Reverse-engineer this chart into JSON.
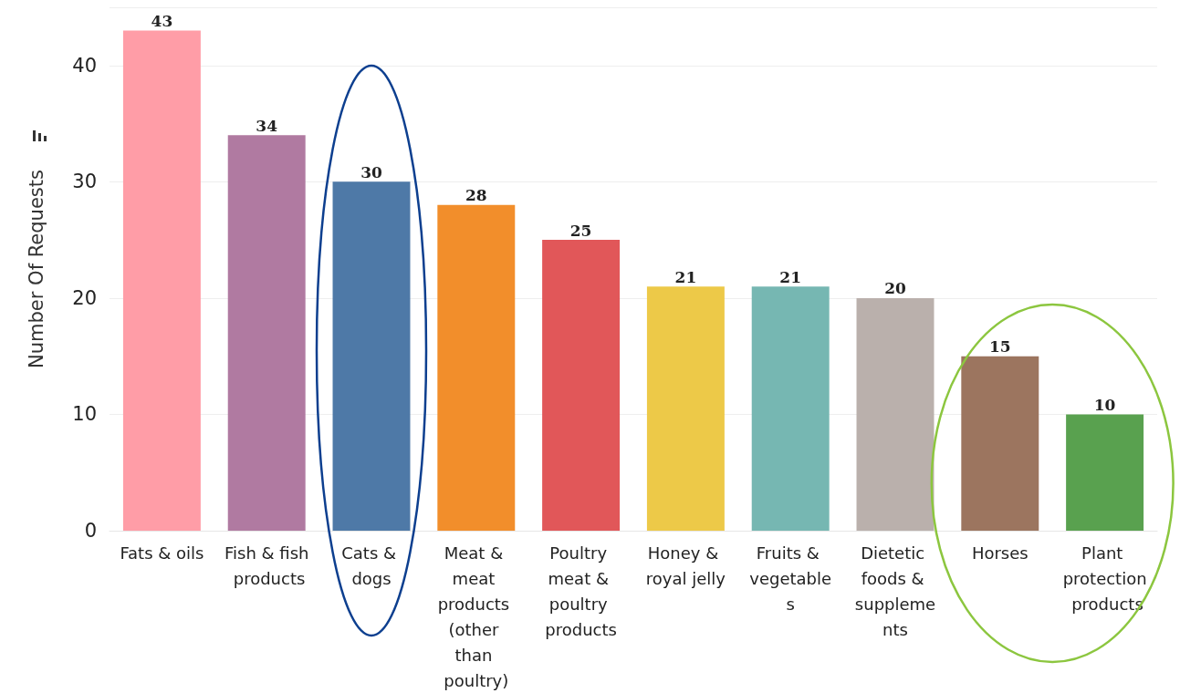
{
  "chart_data": {
    "type": "bar",
    "ylabel": "Number Of Requests",
    "categories": [
      "Fats & oils",
      "Fish & fish products",
      "Cats & dogs",
      "Meat & meat products (other than poultry)",
      "Poultry meat & poultry products",
      "Honey & royal jelly",
      "Fruits & vegetables",
      "Dietetic foods & supplements",
      "Horses",
      "Plant protection products"
    ],
    "values": [
      43,
      34,
      30,
      28,
      25,
      21,
      21,
      20,
      15,
      10
    ],
    "colors": [
      "#ff9da7",
      "#b07aa1",
      "#4e79a7",
      "#f28e2b",
      "#e15759",
      "#edc948",
      "#76b7b2",
      "#bab0ac",
      "#9c755f",
      "#59a14f"
    ],
    "ylim": [
      0,
      45
    ],
    "yticks": [
      0,
      10,
      20,
      30,
      40
    ],
    "grid": "y",
    "data_labels": true
  }
}
